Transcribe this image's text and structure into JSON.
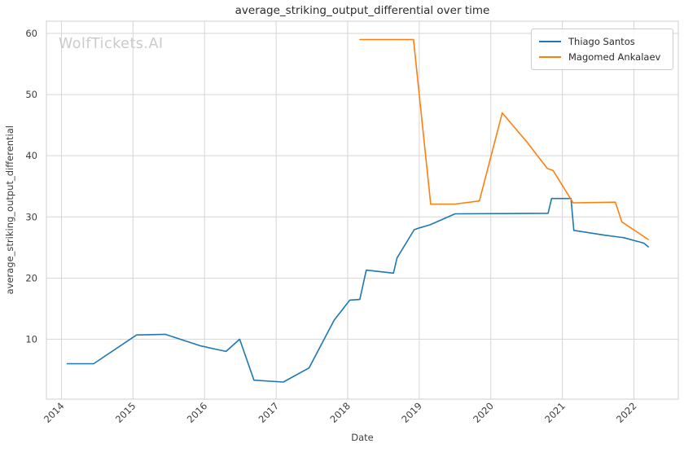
{
  "watermark": "WolfTickets.AI",
  "colors": {
    "santos_blue": "#1f77b4",
    "ankalaev_orange": "#ff7f0e",
    "grid": "#d6d6d6",
    "spine": "#cfcfcf",
    "tick_text": "#3d3d3d",
    "title_text": "#2b2b2b",
    "watermark_text": "#c9cbcd",
    "legend_border": "#cccccc"
  },
  "legend": {
    "items": [
      {
        "label": "Thiago Santos",
        "color": "#1f77b4"
      },
      {
        "label": "Magomed Ankalaev",
        "color": "#ff7f0e"
      }
    ]
  },
  "chart_data": {
    "type": "line",
    "title": "average_striking_output_differential over time",
    "xlabel": "Date",
    "ylabel": "average_striking_output_differential",
    "x_ticks": [
      2014,
      2015,
      2016,
      2017,
      2018,
      2019,
      2020,
      2021,
      2022
    ],
    "x_tick_labels": [
      "2014",
      "2015",
      "2016",
      "2017",
      "2018",
      "2019",
      "2020",
      "2021",
      "2022"
    ],
    "y_ticks": [
      10,
      20,
      30,
      40,
      50,
      60
    ],
    "y_tick_labels": [
      "10",
      "20",
      "30",
      "40",
      "50",
      "60"
    ],
    "xlim": [
      2013.79,
      2022.62
    ],
    "ylim": [
      0.2,
      62.0
    ],
    "grid": true,
    "legend_position": "upper right",
    "line_width": 1.6,
    "series": [
      {
        "name": "Thiago Santos",
        "color": "#1f77b4",
        "points": [
          [
            2014.08,
            6.0
          ],
          [
            2014.45,
            6.0
          ],
          [
            2015.05,
            10.7
          ],
          [
            2015.45,
            10.8
          ],
          [
            2015.95,
            8.9
          ],
          [
            2016.3,
            8.0
          ],
          [
            2016.49,
            10.0
          ],
          [
            2016.69,
            3.3
          ],
          [
            2017.1,
            3.0
          ],
          [
            2017.46,
            5.3
          ],
          [
            2017.81,
            13.1
          ],
          [
            2018.03,
            16.4
          ],
          [
            2018.17,
            16.5
          ],
          [
            2018.26,
            21.3
          ],
          [
            2018.64,
            20.8
          ],
          [
            2018.69,
            23.3
          ],
          [
            2018.93,
            27.9
          ],
          [
            2019.0,
            28.2
          ],
          [
            2019.15,
            28.7
          ],
          [
            2019.5,
            30.5
          ],
          [
            2020.8,
            30.6
          ],
          [
            2020.85,
            33.0
          ],
          [
            2021.12,
            33.0
          ],
          [
            2021.16,
            27.8
          ],
          [
            2021.6,
            27.0
          ],
          [
            2021.86,
            26.6
          ],
          [
            2022.14,
            25.7
          ],
          [
            2022.2,
            25.1
          ]
        ]
      },
      {
        "name": "Magomed Ankalaev",
        "color": "#ff7f0e",
        "points": [
          [
            2018.17,
            59.0
          ],
          [
            2018.92,
            59.0
          ],
          [
            2019.16,
            32.1
          ],
          [
            2019.5,
            32.1
          ],
          [
            2019.84,
            32.6
          ],
          [
            2020.16,
            47.0
          ],
          [
            2020.5,
            42.3
          ],
          [
            2020.79,
            37.9
          ],
          [
            2020.87,
            37.6
          ],
          [
            2021.15,
            32.3
          ],
          [
            2021.74,
            32.4
          ],
          [
            2021.83,
            29.2
          ],
          [
            2022.2,
            26.3
          ]
        ]
      }
    ]
  }
}
